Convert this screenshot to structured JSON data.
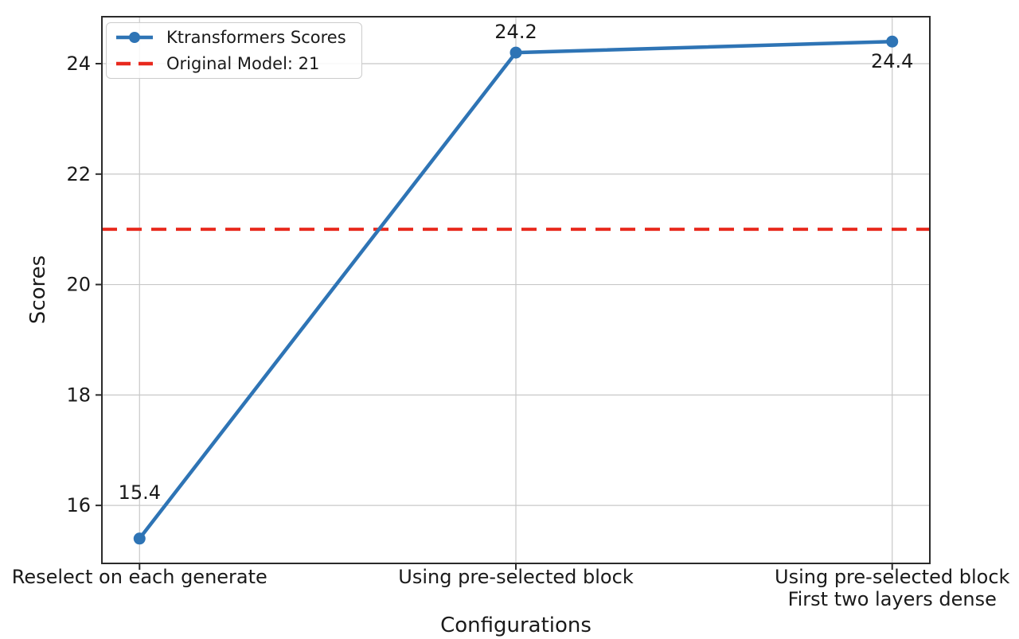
{
  "chart_data": {
    "type": "line",
    "title": "",
    "xlabel": "Configurations",
    "ylabel": "Scores",
    "categories": [
      "Reselect on each generate",
      "Using pre-selected block",
      "Using pre-selected block\nFirst two layers dense"
    ],
    "series": [
      {
        "name": "Ktransformers Scores",
        "values": [
          15.4,
          24.2,
          24.4
        ],
        "color": "#2e74b5",
        "marker": "circle",
        "line_style": "solid"
      }
    ],
    "reference_line": {
      "name": "Original Model: 21",
      "value": 21,
      "color": "#e8291d",
      "line_style": "dashed"
    },
    "point_labels": [
      "15.4",
      "24.2",
      "24.4"
    ],
    "yticks": [
      16,
      18,
      20,
      22,
      24
    ],
    "ylim": [
      14.95,
      24.85
    ],
    "grid": true,
    "legend_position": "upper-left",
    "legend_entries": [
      "Ktransformers Scores",
      "Original Model: 21"
    ]
  },
  "colors": {
    "series_blue": "#2e74b5",
    "reference_red": "#e8291d",
    "grid": "#c8c8c8",
    "spine": "#2b2b2b",
    "text": "#1a1a1a"
  }
}
